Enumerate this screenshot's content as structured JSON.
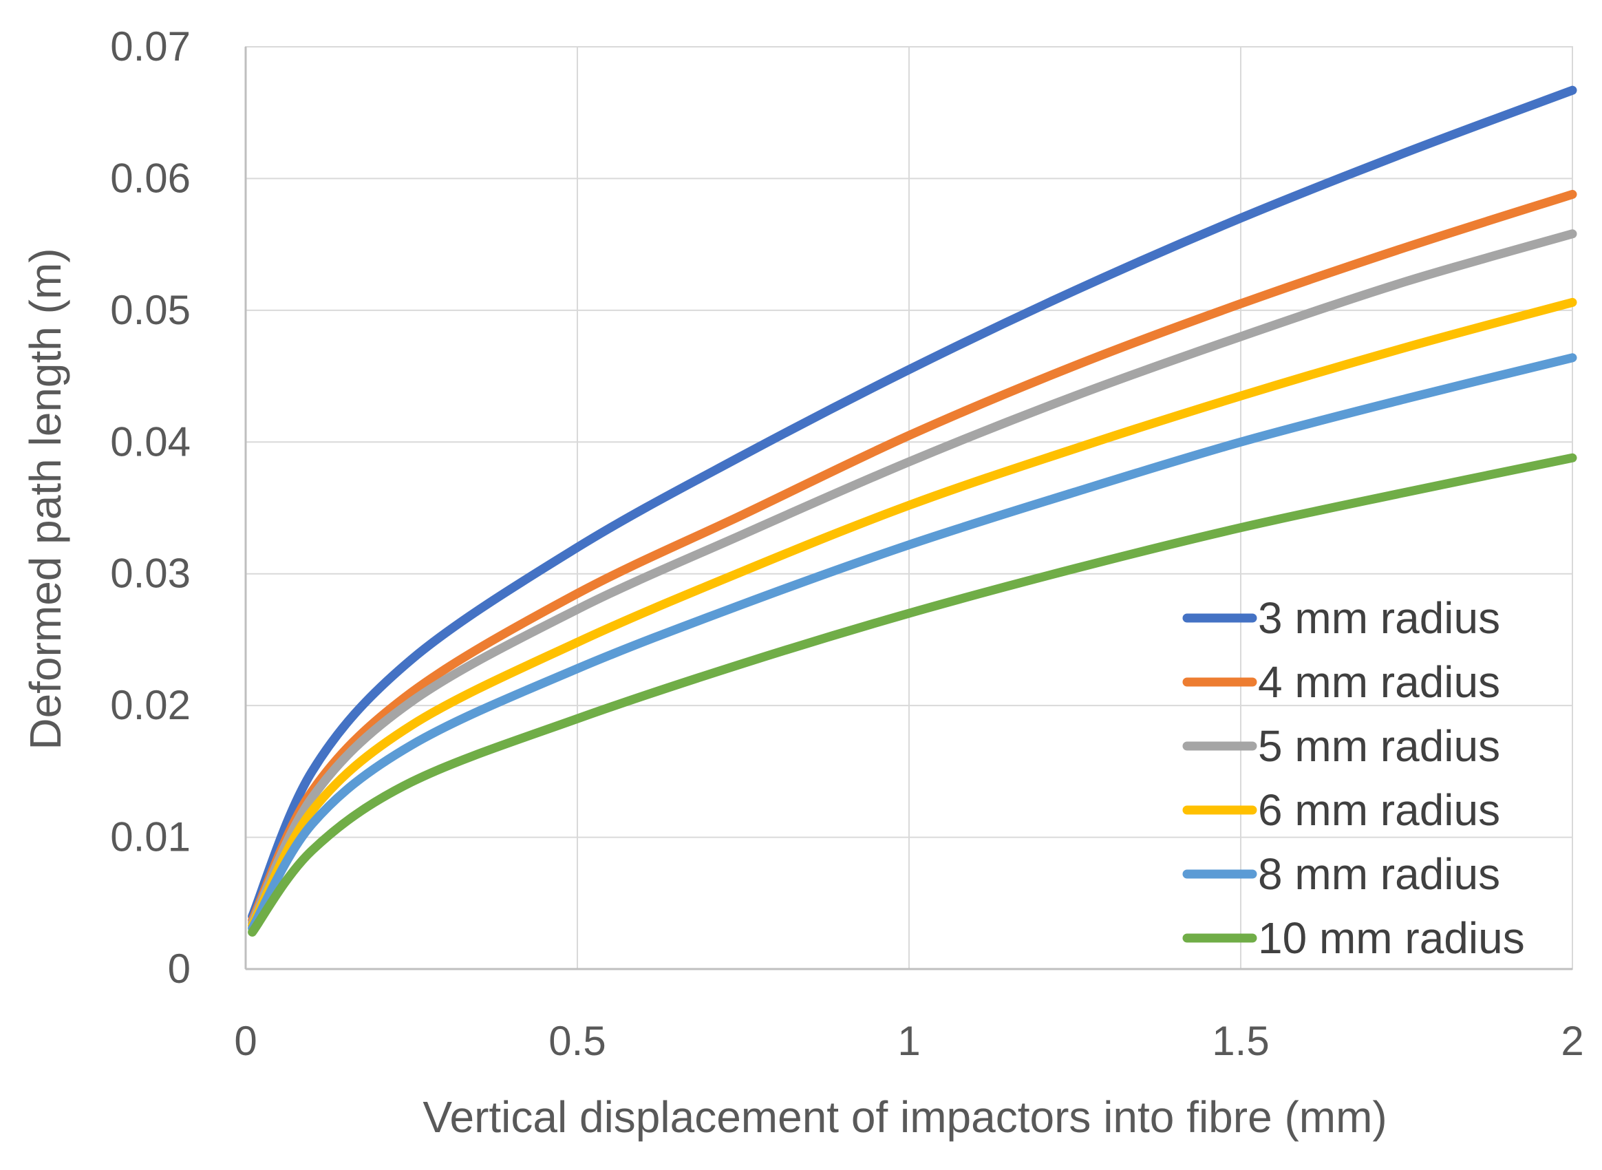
{
  "chart_data": {
    "type": "line",
    "xlabel": "Vertical displacement of impactors into fibre (mm)",
    "ylabel": "Deformed path length (m)",
    "xlim": [
      0,
      2
    ],
    "ylim": [
      0,
      0.07
    ],
    "x_ticks": [
      "0",
      "0.5",
      "1",
      "1.5",
      "2"
    ],
    "y_ticks": [
      "0",
      "0.01",
      "0.02",
      "0.03",
      "0.04",
      "0.05",
      "0.06",
      "0.07"
    ],
    "grid": true,
    "legend_position": "bottom-right",
    "x": [
      0.01,
      0.1,
      0.25,
      0.5,
      0.75,
      1.0,
      1.25,
      1.5,
      1.75,
      2.0
    ],
    "series": [
      {
        "name": "3 mm radius",
        "color": "#4472C4",
        "values": [
          0.004,
          0.015,
          0.0235,
          0.032,
          0.039,
          0.0455,
          0.0515,
          0.057,
          0.062,
          0.0667
        ]
      },
      {
        "name": "4 mm radius",
        "color": "#ED7D31",
        "values": [
          0.0037,
          0.0135,
          0.021,
          0.0285,
          0.0345,
          0.0405,
          0.0458,
          0.0505,
          0.0548,
          0.0588
        ]
      },
      {
        "name": "5 mm radius",
        "color": "#A5A5A5",
        "values": [
          0.0035,
          0.013,
          0.0203,
          0.0273,
          0.033,
          0.0385,
          0.0435,
          0.048,
          0.0522,
          0.0558
        ]
      },
      {
        "name": "6 mm radius",
        "color": "#FFC000",
        "values": [
          0.0033,
          0.012,
          0.0185,
          0.0248,
          0.0302,
          0.0352,
          0.0395,
          0.0435,
          0.0472,
          0.0506
        ]
      },
      {
        "name": "8 mm radius",
        "color": "#5B9BD5",
        "values": [
          0.0031,
          0.011,
          0.017,
          0.0228,
          0.0277,
          0.0322,
          0.0362,
          0.04,
          0.0433,
          0.0464
        ]
      },
      {
        "name": "10 mm radius",
        "color": "#70AD47",
        "values": [
          0.0028,
          0.009,
          0.0142,
          0.019,
          0.0232,
          0.027,
          0.0304,
          0.0335,
          0.0362,
          0.0388
        ]
      }
    ]
  }
}
